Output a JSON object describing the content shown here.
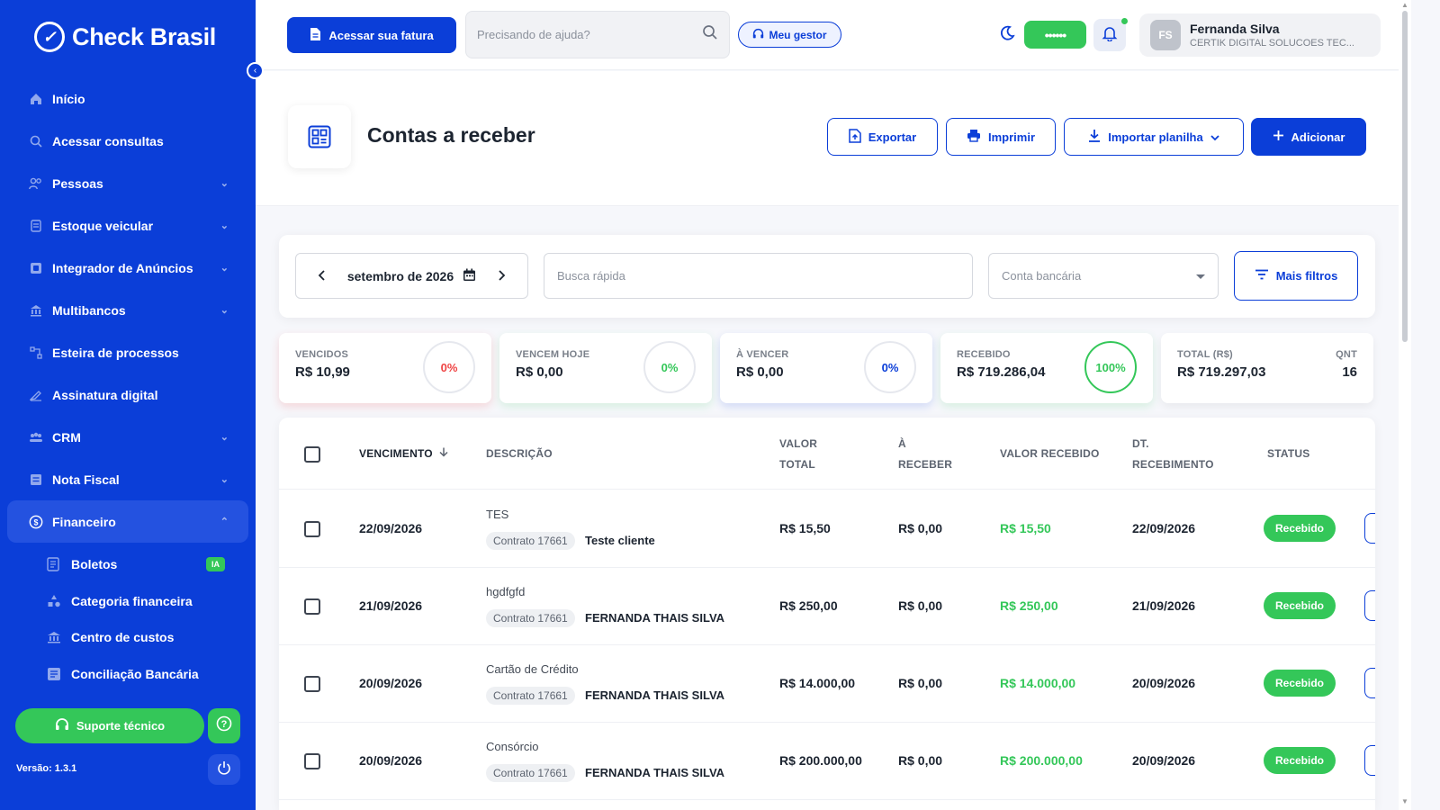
{
  "app": {
    "brand": "Check Brasil"
  },
  "sidebar": {
    "items": [
      {
        "label": "Início",
        "icon": "home-icon",
        "has_children": false
      },
      {
        "label": "Acessar consultas",
        "icon": "search-icon",
        "has_children": false
      },
      {
        "label": "Pessoas",
        "icon": "people-icon",
        "has_children": true
      },
      {
        "label": "Estoque veicular",
        "icon": "vehicle-icon",
        "has_children": true
      },
      {
        "label": "Integrador de Anúncios",
        "icon": "ads-icon",
        "has_children": true
      },
      {
        "label": "Multibancos",
        "icon": "bank-icon",
        "has_children": true
      },
      {
        "label": "Esteira de processos",
        "icon": "process-icon",
        "has_children": false
      },
      {
        "label": "Assinatura digital",
        "icon": "signature-icon",
        "has_children": false
      },
      {
        "label": "CRM",
        "icon": "crm-icon",
        "has_children": true
      },
      {
        "label": "Nota Fiscal",
        "icon": "invoice-icon",
        "has_children": true
      },
      {
        "label": "Financeiro",
        "icon": "finance-icon",
        "has_children": true,
        "expanded": true
      }
    ],
    "financeiro_sub": [
      {
        "label": "Boletos",
        "icon": "boleto-icon",
        "badge": "IA"
      },
      {
        "label": "Categoria financeira",
        "icon": "category-icon"
      },
      {
        "label": "Centro de custos",
        "icon": "cost-center-icon"
      },
      {
        "label": "Conciliação Bancária",
        "icon": "reconciliation-icon"
      }
    ],
    "support_label": "Suporte técnico",
    "version": "Versão: 1.3.1"
  },
  "topbar": {
    "invoice_button": "Acessar sua fatura",
    "help_placeholder": "Precisando de ajuda?",
    "manager_button": "Meu gestor",
    "password_mask": "••••••",
    "user": {
      "initials": "FS",
      "name": "Fernanda Silva",
      "company": "CERTIK DIGITAL SOLUCOES TEC..."
    }
  },
  "page": {
    "title": "Contas a receber",
    "actions": {
      "export": "Exportar",
      "print": "Imprimir",
      "import": "Importar planilha",
      "add": "Adicionar"
    }
  },
  "filters": {
    "month": "setembro de 2026",
    "quick_search_placeholder": "Busca rápida",
    "bank_account_placeholder": "Conta bancária",
    "more_filters": "Mais filtros"
  },
  "kpis": [
    {
      "label": "VENCIDOS",
      "value": "R$ 10,99",
      "percent": "0%",
      "color": "#ef4444"
    },
    {
      "label": "VENCEM HOJE",
      "value": "R$ 0,00",
      "percent": "0%",
      "color": "#34c759"
    },
    {
      "label": "À VENCER",
      "value": "R$ 0,00",
      "percent": "0%",
      "color": "#0b3ed8"
    },
    {
      "label": "RECEBIDO",
      "value": "R$ 719.286,04",
      "percent": "100%",
      "color": "#34c759"
    }
  ],
  "total": {
    "label": "TOTAL (R$)",
    "value": "R$ 719.297,03",
    "qnt_label": "QNT",
    "qnt": "16"
  },
  "table": {
    "headers": {
      "vencimento": "VENCIMENTO",
      "descricao": "DESCRIÇÃO",
      "valor_total_1": "VALOR",
      "valor_total_2": "TOTAL",
      "a_receber_1": "À",
      "a_receber_2": "RECEBER",
      "valor_recebido": "VALOR RECEBIDO",
      "dt_recebimento_1": "DT.",
      "dt_recebimento_2": "RECEBIMENTO",
      "status": "STATUS"
    },
    "rows": [
      {
        "vencimento": "22/09/2026",
        "descricao": "TES",
        "contrato": "Contrato 17661",
        "cliente": "Teste cliente",
        "valor_total": "R$ 15,50",
        "a_receber": "R$ 0,00",
        "valor_recebido": "R$ 15,50",
        "dt_recebimento": "22/09/2026",
        "status": "Recebido"
      },
      {
        "vencimento": "21/09/2026",
        "descricao": "hgdfgfd",
        "contrato": "Contrato 17661",
        "cliente": "FERNANDA THAIS SILVA",
        "valor_total": "R$ 250,00",
        "a_receber": "R$ 0,00",
        "valor_recebido": "R$ 250,00",
        "dt_recebimento": "21/09/2026",
        "status": "Recebido"
      },
      {
        "vencimento": "20/09/2026",
        "descricao": "Cartão de Crédito",
        "contrato": "Contrato 17661",
        "cliente": "FERNANDA THAIS SILVA",
        "valor_total": "R$ 14.000,00",
        "a_receber": "R$ 0,00",
        "valor_recebido": "R$ 14.000,00",
        "dt_recebimento": "20/09/2026",
        "status": "Recebido"
      },
      {
        "vencimento": "20/09/2026",
        "descricao": "Consórcio",
        "contrato": "Contrato 17661",
        "cliente": "FERNANDA THAIS SILVA",
        "valor_total": "R$ 200.000,00",
        "a_receber": "R$ 0,00",
        "valor_recebido": "R$ 200.000,00",
        "dt_recebimento": "20/09/2026",
        "status": "Recebido"
      }
    ]
  }
}
